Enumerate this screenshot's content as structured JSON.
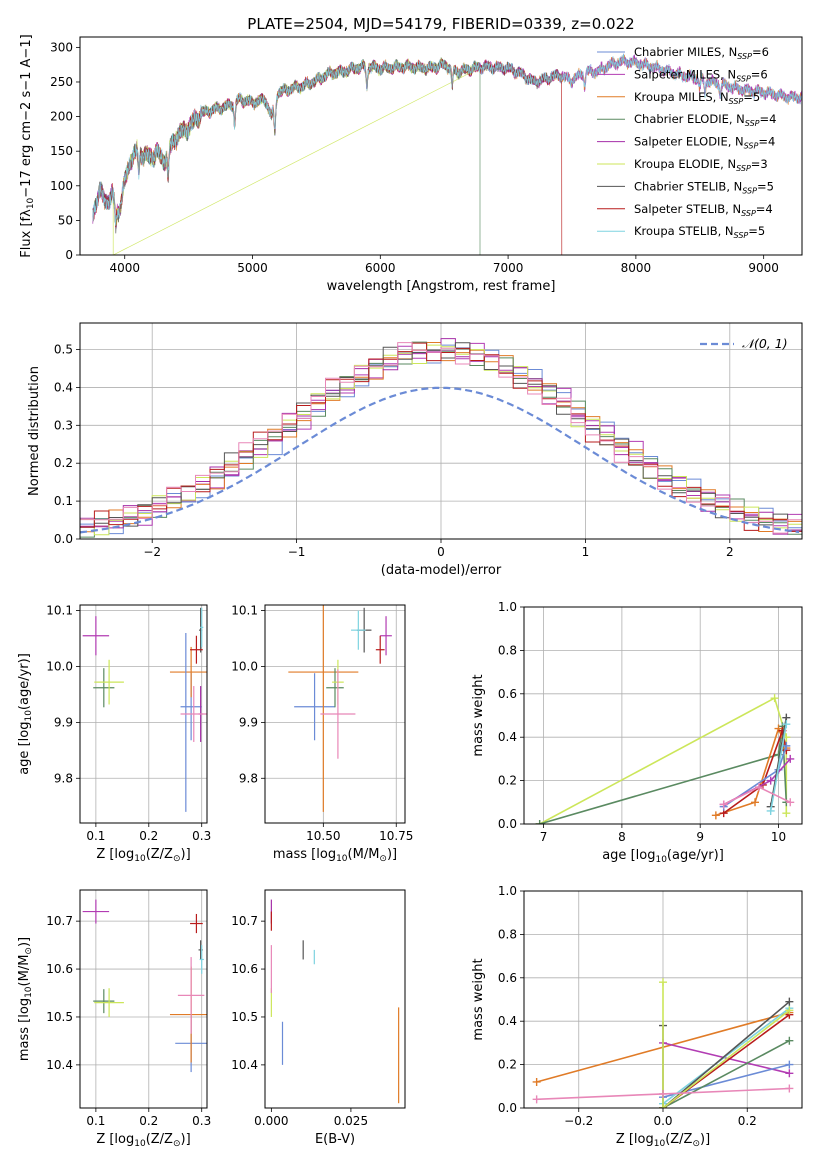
{
  "colors": {
    "series": [
      "#6b8bd6",
      "#b23cb3",
      "#e07b27",
      "#5a8a61",
      "#a52ea8",
      "#cce65a",
      "#555555",
      "#b81c1c",
      "#7ed3e0"
    ],
    "normal": "#6b8bd6",
    "pink": "#e887b8",
    "grid": "#b0b0b0"
  },
  "chart_data": [
    {
      "id": "spectrum",
      "type": "line",
      "title": "PLATE=2504, MJD=54179, FIBERID=0339, z=0.022",
      "xlabel": "wavelength [Angstrom, rest frame]",
      "ylabel_parts": [
        "Flux [f",
        "λ",
        "10",
        "−17",
        " erg cm",
        "−2",
        " s",
        "−1",
        " A",
        "−1",
        "]"
      ],
      "xlim": [
        3650,
        9300
      ],
      "ylim": [
        0,
        315
      ],
      "xticks": [
        4000,
        5000,
        6000,
        7000,
        8000,
        9000
      ],
      "yticks": [
        0,
        50,
        100,
        150,
        200,
        250,
        300
      ],
      "grid": false,
      "legend": "top-right",
      "anchors": [
        [
          3750,
          55
        ],
        [
          3800,
          95
        ],
        [
          3850,
          75
        ],
        [
          3900,
          88
        ],
        [
          3950,
          60
        ],
        [
          4000,
          105
        ],
        [
          4050,
          140
        ],
        [
          4100,
          150
        ],
        [
          4200,
          140
        ],
        [
          4250,
          150
        ],
        [
          4300,
          135
        ],
        [
          4400,
          170
        ],
        [
          4500,
          185
        ],
        [
          4600,
          205
        ],
        [
          4700,
          210
        ],
        [
          4800,
          215
        ],
        [
          4900,
          225
        ],
        [
          5000,
          220
        ],
        [
          5100,
          225
        ],
        [
          5150,
          200
        ],
        [
          5200,
          235
        ],
        [
          5300,
          240
        ],
        [
          5400,
          245
        ],
        [
          5500,
          252
        ],
        [
          5600,
          262
        ],
        [
          5700,
          265
        ],
        [
          5800,
          270
        ],
        [
          5900,
          272
        ],
        [
          6000,
          270
        ],
        [
          6200,
          272
        ],
        [
          6400,
          270
        ],
        [
          6500,
          275
        ],
        [
          6600,
          265
        ],
        [
          6800,
          272
        ],
        [
          7000,
          270
        ],
        [
          7100,
          262
        ],
        [
          7200,
          250
        ],
        [
          7300,
          255
        ],
        [
          7400,
          260
        ],
        [
          7500,
          252
        ],
        [
          7600,
          265
        ],
        [
          7700,
          265
        ],
        [
          7800,
          275
        ],
        [
          7900,
          280
        ],
        [
          8000,
          278
        ],
        [
          8200,
          268
        ],
        [
          8400,
          258
        ],
        [
          8600,
          250
        ],
        [
          8800,
          240
        ],
        [
          9000,
          235
        ],
        [
          9200,
          228
        ]
      ],
      "dips": [
        [
          3930,
          0.6
        ],
        [
          4110,
          0.8
        ],
        [
          4340,
          0.75
        ],
        [
          4860,
          0.85
        ],
        [
          5175,
          0.82
        ],
        [
          5895,
          0.9
        ],
        [
          6563,
          0.9
        ],
        [
          7600,
          0.92
        ],
        [
          8500,
          0.95
        ],
        [
          8540,
          0.93
        ],
        [
          8660,
          0.94
        ]
      ],
      "dropouts": [
        {
          "series": 5,
          "x": 3910
        },
        {
          "series": 3,
          "x": 6780
        },
        {
          "series": 7,
          "x": 7420
        }
      ],
      "series": [
        {
          "name": "Chabrier MILES, N",
          "sub": "SSP",
          "count": "=6",
          "start": 3750,
          "end": 9300
        },
        {
          "name": "Salpeter MILES, N",
          "sub": "SSP",
          "count": "=6",
          "start": 3750,
          "end": 9300
        },
        {
          "name": "Kroupa MILES, N",
          "sub": "SSP",
          "count": "=5",
          "start": 3750,
          "end": 9300
        },
        {
          "name": "Chabrier ELODIE, N",
          "sub": "SSP",
          "count": "=4",
          "start": 3750,
          "end": 6780
        },
        {
          "name": "Salpeter ELODIE, N",
          "sub": "SSP",
          "count": "=4",
          "start": 3750,
          "end": 9300
        },
        {
          "name": "Kroupa ELODIE, N",
          "sub": "SSP",
          "count": "=3",
          "start": 3910,
          "end": 6780
        },
        {
          "name": "Chabrier STELIB, N",
          "sub": "SSP",
          "count": "=5",
          "start": 3750,
          "end": 7420
        },
        {
          "name": "Salpeter STELIB, N",
          "sub": "SSP",
          "count": "=4",
          "start": 3750,
          "end": 7420
        },
        {
          "name": "Kroupa STELIB, N",
          "sub": "SSP",
          "count": "=5",
          "start": 3750,
          "end": 9300
        }
      ]
    },
    {
      "id": "residuals",
      "type": "histogram",
      "xlabel": "(data-model)/error",
      "ylabel": "Normed distribution",
      "xlim": [
        -2.5,
        2.5
      ],
      "ylim": [
        0,
        0.57
      ],
      "xticks": [
        -2,
        -1,
        0,
        1,
        2
      ],
      "yticks": [
        0.0,
        0.1,
        0.2,
        0.3,
        0.4,
        0.5
      ],
      "grid": true,
      "legend": "top-right",
      "normal_label": "𝒩(0, 1)",
      "bins": 50,
      "hist_scale": 1.25
    },
    {
      "id": "age_vs_Z",
      "type": "scatter",
      "xlabel_parts": [
        "Z [log",
        "10",
        "(Z/Z",
        "⊙",
        ")]"
      ],
      "ylabel_parts": [
        "age  [log",
        "10",
        "(age/yr)]"
      ],
      "xlim": [
        0.07,
        0.31
      ],
      "ylim": [
        9.72,
        10.11
      ],
      "xticks": [
        0.1,
        0.2,
        0.3
      ],
      "yticks": [
        9.8,
        9.9,
        10.0,
        10.1
      ],
      "grid": true,
      "points": [
        {
          "c": 0,
          "x": 0.28,
          "y": 9.928,
          "xe": 0.02,
          "ye": 0.06
        },
        {
          "c": 1,
          "x": 0.1,
          "y": 10.055,
          "xe": 0.025,
          "ye": 0.035
        },
        {
          "c": 2,
          "x": 0.28,
          "y": 9.99,
          "xe": 0.04,
          "ye": 0.045
        },
        {
          "c": 3,
          "x": 0.115,
          "y": 9.962,
          "xe": 0.02,
          "ye": 0.035
        },
        {
          "c": 4,
          "x": 0.298,
          "y": 9.915,
          "xe": 0.004,
          "ye": 0.05
        },
        {
          "c": 5,
          "x": 0.125,
          "y": 9.972,
          "xe": 0.028,
          "ye": 0.04
        },
        {
          "c": 6,
          "x": 0.298,
          "y": 10.065,
          "xe": 0.003,
          "ye": 0.04
        },
        {
          "c": 7,
          "x": 0.29,
          "y": 10.03,
          "xe": 0.012,
          "ye": 0.025
        },
        {
          "c": 8,
          "x": 0.3,
          "y": 10.07,
          "xe": 0.003,
          "ye": 0.035
        },
        {
          "c": 0,
          "x": 0.27,
          "y": 9.9,
          "xe": 0.001,
          "ye": 0.16,
          "pink": false,
          "vonly": true
        },
        {
          "pink": true,
          "x": 0.285,
          "y": 9.915,
          "xe": 0.025,
          "ye": 0.05
        }
      ]
    },
    {
      "id": "age_vs_mass",
      "type": "scatter",
      "xlabel_parts": [
        "mass [log",
        "10",
        "(M/M",
        "⊙",
        ")]"
      ],
      "ylabel_parts": [],
      "xlim": [
        10.3,
        10.78
      ],
      "ylim": [
        9.72,
        10.11
      ],
      "xticks": [
        10.5,
        10.75
      ],
      "yticks": [
        9.8,
        9.9,
        10.0,
        10.1
      ],
      "grid": true,
      "points": [
        {
          "c": 0,
          "x": 10.47,
          "y": 9.928,
          "xe": 0.07,
          "ye": 0.06
        },
        {
          "c": 1,
          "x": 10.715,
          "y": 10.055,
          "xe": 0.02,
          "ye": 0.035
        },
        {
          "c": 2,
          "x": 10.5,
          "y": 9.99,
          "xe": 0.12,
          "ye": 0.25
        },
        {
          "c": 3,
          "x": 10.54,
          "y": 9.962,
          "xe": 0.03,
          "ye": 0.035
        },
        {
          "c": 5,
          "x": 10.55,
          "y": 9.972,
          "xe": 0.02,
          "ye": 0.04
        },
        {
          "c": 6,
          "x": 10.64,
          "y": 10.065,
          "xe": 0.025,
          "ye": 0.04
        },
        {
          "c": 7,
          "x": 10.695,
          "y": 10.03,
          "xe": 0.015,
          "ye": 0.025
        },
        {
          "c": 8,
          "x": 10.62,
          "y": 10.065,
          "xe": 0.025,
          "ye": 0.035
        },
        {
          "pink": true,
          "x": 10.55,
          "y": 9.915,
          "xe": 0.06,
          "ye": 0.08
        }
      ]
    },
    {
      "id": "massweight_vs_age",
      "type": "line",
      "xlabel_parts": [
        "age  [log",
        "10",
        "(age/yr)]"
      ],
      "ylabel": "mass weight",
      "xlim": [
        6.75,
        10.3
      ],
      "ylim": [
        0,
        1.0
      ],
      "xticks": [
        7,
        8,
        9,
        10
      ],
      "yticks": [
        0.0,
        0.2,
        0.4,
        0.6,
        0.8,
        1.0
      ],
      "grid": true,
      "series": [
        {
          "c": 5,
          "points": [
            [
              6.95,
              0.0
            ],
            [
              9.95,
              0.58
            ],
            [
              10.1,
              0.4
            ],
            [
              10.1,
              0.05
            ]
          ]
        },
        {
          "c": 3,
          "points": [
            [
              6.95,
              0.0
            ],
            [
              10.0,
              0.32
            ],
            [
              10.05,
              0.45
            ],
            [
              10.1,
              0.1
            ]
          ]
        },
        {
          "c": 2,
          "points": [
            [
              9.2,
              0.04
            ],
            [
              9.7,
              0.1
            ],
            [
              10.0,
              0.44
            ],
            [
              10.1,
              0.35
            ]
          ]
        },
        {
          "c": 7,
          "points": [
            [
              9.3,
              0.05
            ],
            [
              9.8,
              0.18
            ],
            [
              10.05,
              0.43
            ],
            [
              10.1,
              0.34
            ]
          ]
        },
        {
          "c": 0,
          "points": [
            [
              9.3,
              0.08
            ],
            [
              10.0,
              0.25
            ],
            [
              10.1,
              0.36
            ]
          ]
        },
        {
          "c": 1,
          "points": [
            [
              9.3,
              0.09
            ],
            [
              9.9,
              0.2
            ],
            [
              10.15,
              0.3
            ]
          ]
        },
        {
          "c": 6,
          "points": [
            [
              9.9,
              0.08
            ],
            [
              10.1,
              0.49
            ]
          ]
        },
        {
          "c": 8,
          "points": [
            [
              9.9,
              0.06
            ],
            [
              10.1,
              0.46
            ]
          ]
        },
        {
          "pink": true,
          "points": [
            [
              9.3,
              0.09
            ],
            [
              9.75,
              0.17
            ],
            [
              10.15,
              0.1
            ]
          ]
        }
      ]
    },
    {
      "id": "mass_vs_Z",
      "type": "scatter",
      "xlabel_parts": [
        "Z [log",
        "10",
        "(Z/Z",
        "⊙",
        ")]"
      ],
      "ylabel_parts": [
        "mass [log",
        "10",
        "(M/M",
        "⊙",
        ")]"
      ],
      "xlim": [
        0.07,
        0.31
      ],
      "ylim": [
        10.31,
        10.765
      ],
      "xticks": [
        0.1,
        0.2,
        0.3
      ],
      "yticks": [
        10.4,
        10.5,
        10.6,
        10.7
      ],
      "grid": true,
      "points": [
        {
          "c": 0,
          "x": 0.28,
          "y": 10.445,
          "xe": 0.03,
          "ye": 0.06
        },
        {
          "c": 1,
          "x": 0.1,
          "y": 10.72,
          "xe": 0.025,
          "ye": 0.025
        },
        {
          "c": 2,
          "x": 0.28,
          "y": 10.505,
          "xe": 0.04,
          "ye": 0.1
        },
        {
          "c": 3,
          "x": 0.115,
          "y": 10.533,
          "xe": 0.02,
          "ye": 0.025
        },
        {
          "c": 5,
          "x": 0.125,
          "y": 10.53,
          "xe": 0.028,
          "ye": 0.03
        },
        {
          "c": 6,
          "x": 0.298,
          "y": 10.64,
          "xe": 0.004,
          "ye": 0.02
        },
        {
          "c": 7,
          "x": 0.29,
          "y": 10.695,
          "xe": 0.012,
          "ye": 0.02
        },
        {
          "c": 8,
          "x": 0.3,
          "y": 10.62,
          "xe": 0.004,
          "ye": 0.03
        },
        {
          "pink": true,
          "x": 0.28,
          "y": 10.545,
          "xe": 0.025,
          "ye": 0.08
        }
      ]
    },
    {
      "id": "ebv",
      "type": "scatter",
      "xlabel": "E(B-V)",
      "ylabel_parts": [],
      "xlim": [
        -0.002,
        0.042
      ],
      "ylim": [
        10.31,
        10.765
      ],
      "xticks": [
        0.0,
        0.025
      ],
      "yticks": [
        10.4,
        10.5,
        10.6,
        10.7
      ],
      "grid": false,
      "points": [
        {
          "c": 0,
          "x": 0.0035,
          "y": 10.445,
          "xe": 0,
          "ye": 0.045
        },
        {
          "c": 4,
          "x": 0.0,
          "y": 10.72,
          "xe": 0,
          "ye": 0.025
        },
        {
          "c": 7,
          "x": 0.0,
          "y": 10.7,
          "xe": 0,
          "ye": 0.02
        },
        {
          "c": 5,
          "x": 0.0,
          "y": 10.53,
          "xe": 0,
          "ye": 0.03
        },
        {
          "c": 6,
          "x": 0.01,
          "y": 10.64,
          "xe": 0,
          "ye": 0.02
        },
        {
          "c": 8,
          "x": 0.0135,
          "y": 10.625,
          "xe": 0,
          "ye": 0.015
        },
        {
          "c": 2,
          "x": 0.04,
          "y": 10.42,
          "xe": 0,
          "ye": 0.1
        },
        {
          "pink": true,
          "x": 0.0,
          "y": 10.6,
          "xe": 0,
          "ye": 0.05
        }
      ]
    },
    {
      "id": "massweight_vs_Z",
      "type": "line",
      "xlabel_parts": [
        "Z [log",
        "10",
        "(Z/Z",
        "⊙",
        ")]"
      ],
      "ylabel": "mass weight",
      "xlim": [
        -0.33,
        0.33
      ],
      "ylim": [
        0,
        1.0
      ],
      "xticks": [
        -0.2,
        0.0,
        0.2
      ],
      "yticks": [
        0.0,
        0.2,
        0.4,
        0.6,
        0.8,
        1.0
      ],
      "grid": true,
      "series": [
        {
          "c": 2,
          "points": [
            [
              -0.3,
              0.12
            ],
            [
              0.3,
              0.44
            ]
          ]
        },
        {
          "c": 1,
          "points": [
            [
              0.0,
              0.3
            ],
            [
              0.3,
              0.16
            ]
          ]
        },
        {
          "c": 0,
          "points": [
            [
              0.0,
              0.05
            ],
            [
              0.3,
              0.2
            ]
          ]
        },
        {
          "c": 3,
          "points": [
            [
              0.0,
              0.0
            ],
            [
              0.3,
              0.31
            ]
          ]
        },
        {
          "c": 7,
          "points": [
            [
              0.0,
              0.0
            ],
            [
              0.3,
              0.43
            ]
          ]
        },
        {
          "c": 8,
          "points": [
            [
              0.0,
              0.02
            ],
            [
              0.3,
              0.46
            ]
          ]
        },
        {
          "c": 6,
          "points": [
            [
              0.0,
              0.38
            ],
            [
              0.0,
              0.0
            ],
            [
              0.3,
              0.49
            ]
          ]
        },
        {
          "c": 5,
          "points": [
            [
              0.0,
              0.58
            ],
            [
              0.0,
              0.0
            ],
            [
              0.3,
              0.45
            ]
          ]
        },
        {
          "pink": true,
          "points": [
            [
              -0.3,
              0.04
            ],
            [
              0.0,
              0.065
            ],
            [
              0.3,
              0.09
            ]
          ]
        }
      ]
    }
  ]
}
